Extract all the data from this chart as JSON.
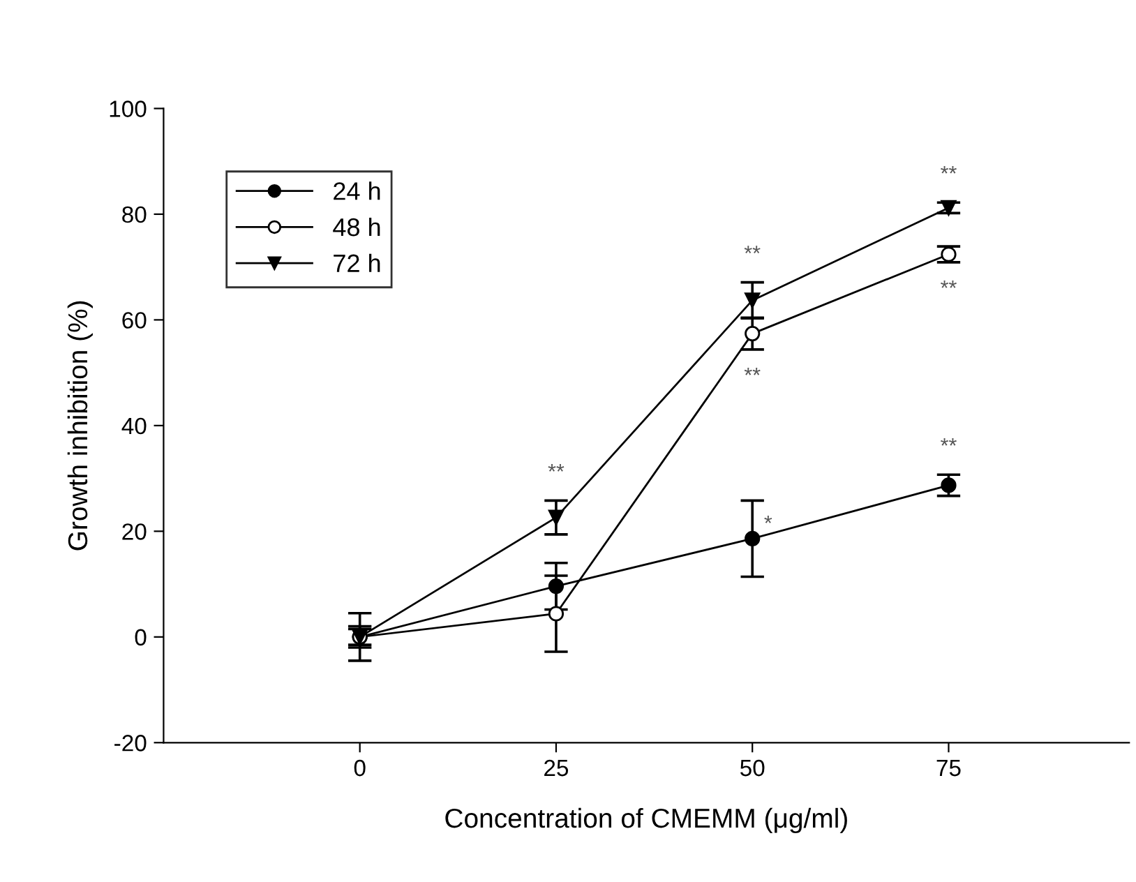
{
  "chart_data": {
    "type": "line",
    "xlabel": "Concentration of CMEMM (μg/ml)",
    "ylabel": "Growth inhibition (%)",
    "x": [
      0,
      25,
      50,
      75
    ],
    "xlim": [
      -25,
      98
    ],
    "xticks": [
      0,
      25,
      50,
      75
    ],
    "ylim": [
      -20,
      100
    ],
    "yticks": [
      -20,
      0,
      20,
      40,
      60,
      80,
      100
    ],
    "grid": false,
    "legend": "top left",
    "series": [
      {
        "name": "24 h",
        "color": "#000000",
        "marker": "circle",
        "values": [
          0,
          9.6,
          18.6,
          28.7
        ],
        "errors": [
          4.5,
          4.4,
          7.2,
          2
        ]
      },
      {
        "name": "48 h",
        "color": "#000000",
        "marker": "circle",
        "values": [
          0,
          4.4,
          57.4,
          72.4
        ],
        "errors": [
          2,
          7.2,
          3,
          1.5
        ]
      },
      {
        "name": "72 h",
        "color": "#000000",
        "marker": "triangle",
        "values": [
          0,
          22.6,
          63.7,
          81.2
        ],
        "errors": [
          1.5,
          3.2,
          3.4,
          1
        ]
      }
    ],
    "annotations": [
      {
        "text": "**",
        "x": 25,
        "y": 22.6
      },
      {
        "text": "**",
        "x": 50,
        "y": 63.7
      },
      {
        "text": "**",
        "x": 50,
        "y": 57.4
      },
      {
        "text": "*",
        "x": 50,
        "y": 18.6
      },
      {
        "text": "**",
        "x": 75,
        "y": 81.2
      },
      {
        "text": "**",
        "x": 75,
        "y": 72.4
      },
      {
        "text": "**",
        "x": 75,
        "y": 28.7
      }
    ]
  }
}
